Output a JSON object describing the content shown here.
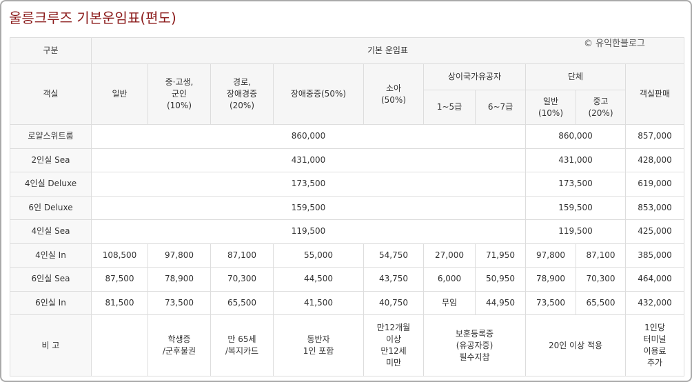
{
  "title": "울릉크루즈 기본운임표(편도)",
  "watermark": "© 유익한블로그",
  "table": {
    "header_rows": [
      [
        "구분",
        "기본 운임표"
      ],
      [
        "객실",
        "일반",
        "중·고생,\n군인\n(10%)",
        "경로,\n장애경증\n(20%)",
        "장애중증(50%)",
        "소아\n(50%)",
        "상이국가유공자",
        "단체",
        "객실판매"
      ],
      [
        "1~5급",
        "6~7급",
        "일반\n(10%)",
        "중고\n(20%)"
      ]
    ],
    "rows": [
      [
        "로얄스위트룸",
        "860,000",
        "860,000",
        "857,000"
      ],
      [
        "2인실 Sea",
        "431,000",
        "431,000",
        "428,000"
      ],
      [
        "4인실 Deluxe",
        "173,500",
        "173,500",
        "619,000"
      ],
      [
        "6인 Deluxe",
        "159,500",
        "159,500",
        "853,000"
      ],
      [
        "4인실 Sea",
        "119,500",
        "119,500",
        "425,000"
      ],
      [
        "4인실 In",
        "108,500",
        "97,800",
        "87,100",
        "55,000",
        "54,750",
        "27,000",
        "71,950",
        "97,800",
        "87,100",
        "385,000"
      ],
      [
        "6인실 Sea",
        "87,500",
        "78,900",
        "70,300",
        "44,500",
        "43,750",
        "6,000",
        "50,950",
        "78,900",
        "70,300",
        "464,000"
      ],
      [
        "6인실 In",
        "81,500",
        "73,500",
        "65,500",
        "41,500",
        "40,750",
        "무임",
        "44,950",
        "73,500",
        "65,500",
        "432,000"
      ]
    ],
    "note_row": [
      "비 고",
      "학생증\n/군후불권",
      "만 65세\n/복지카드",
      "동반자\n1인 포함",
      "만12개월\n이상\n만12세\n미만",
      "보훈등록증\n(유공자증)\n필수지참",
      "20인 이상 적용",
      "1인당\n터미널\n이용료\n추가"
    ]
  }
}
